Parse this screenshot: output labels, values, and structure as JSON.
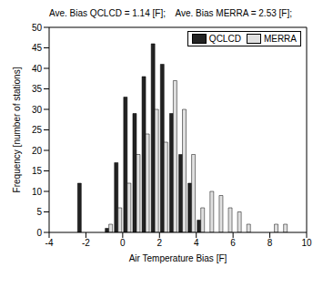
{
  "chart_data": {
    "type": "bar",
    "title": "Ave. Bias QCLCD = 1.14 [F];    Ave. Bias MERRA = 2.53 [F];",
    "x_label": "Air Temperature Bias [F]",
    "y_label": "Frequency [number of stations]",
    "x": [
      -2.25,
      -0.75,
      -0.25,
      0.25,
      0.75,
      1.25,
      1.75,
      2.25,
      2.75,
      3.25,
      3.75,
      4.25,
      4.75,
      5.25,
      5.75,
      6.25,
      6.75,
      8.25,
      8.75
    ],
    "series": [
      {
        "name": "QCLCD",
        "color": "#222222",
        "values": [
          12,
          1,
          17,
          33,
          29,
          38,
          46,
          41,
          29,
          19,
          12,
          3,
          null,
          null,
          null,
          null,
          null,
          null,
          null
        ]
      },
      {
        "name": "MERRA",
        "color": "#e0e0e0",
        "values": [
          null,
          2,
          6,
          12,
          19,
          24,
          30,
          22,
          37,
          30,
          19,
          6,
          10,
          9,
          6,
          5,
          2,
          2,
          2
        ]
      }
    ],
    "xlim": [
      -4,
      10
    ],
    "xticks": [
      -4,
      -2,
      0,
      2,
      4,
      6,
      8,
      10
    ],
    "ylim": [
      0,
      50
    ],
    "yticks": [
      0,
      5,
      10,
      15,
      20,
      25,
      30,
      35,
      40,
      45,
      50
    ],
    "grid": false,
    "legend": "upper right"
  }
}
